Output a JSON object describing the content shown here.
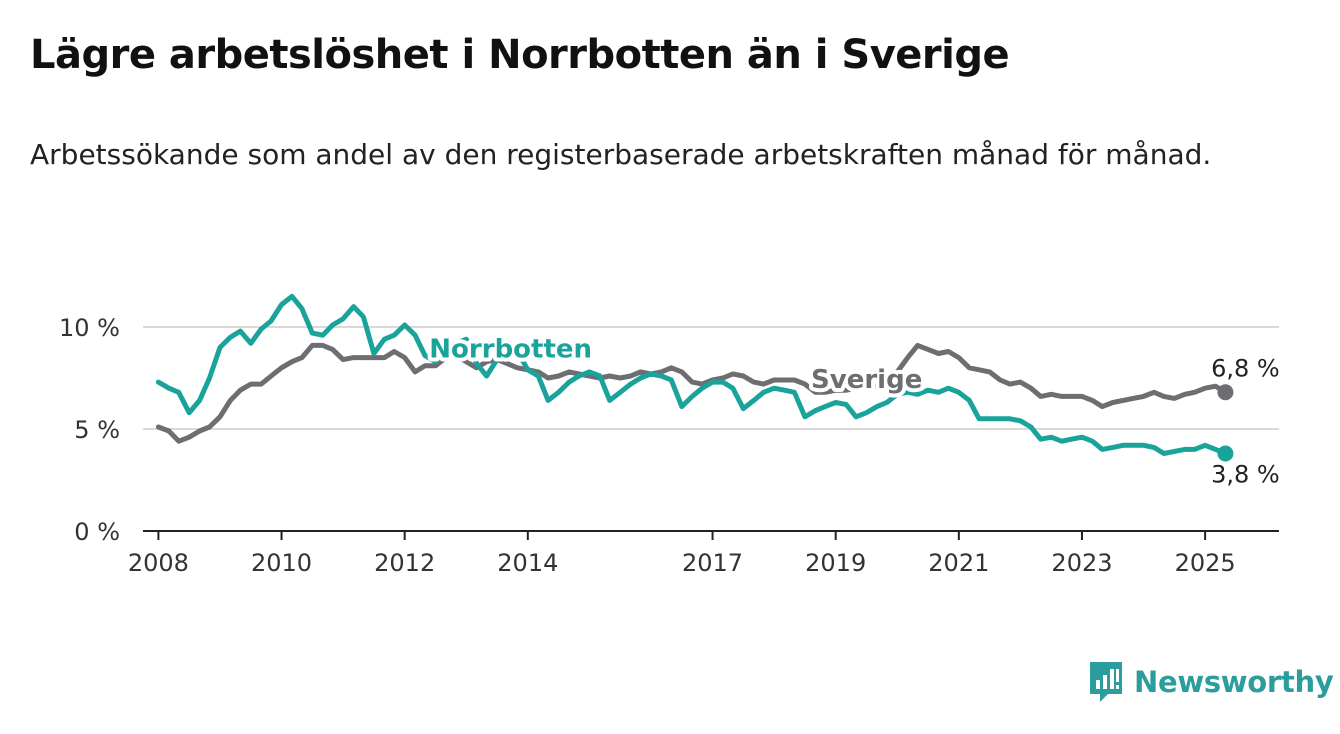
{
  "header": {
    "title": "Lägre arbetslöshet i Norrbotten än i Sverige",
    "subtitle": "Arbetssökande som andel av den registerbaserade arbetskraften månad för månad."
  },
  "brand": {
    "name": "Newsworthy",
    "icon": "newsworthy-logo-icon",
    "color": "#2a9d9c"
  },
  "chart_data": {
    "type": "line",
    "x_unit": "year",
    "xlim": [
      2007.75,
      2026.2
    ],
    "ylim": [
      0,
      10
    ],
    "grid": true,
    "x_ticks": [
      {
        "value": 2008,
        "label": "2008"
      },
      {
        "value": 2010,
        "label": "2010"
      },
      {
        "value": 2012,
        "label": "2012"
      },
      {
        "value": 2014,
        "label": "2014"
      },
      {
        "value": 2017,
        "label": "2017"
      },
      {
        "value": 2019,
        "label": "2019"
      },
      {
        "value": 2021,
        "label": "2021"
      },
      {
        "value": 2023,
        "label": "2023"
      },
      {
        "value": 2025,
        "label": "2025"
      }
    ],
    "y_ticks": [
      {
        "value": 0,
        "label": "0 %"
      },
      {
        "value": 5,
        "label": "5 %"
      },
      {
        "value": 10,
        "label": "10 %"
      }
    ],
    "series": [
      {
        "name": "Sverige",
        "color": "#6d6d72",
        "end_label": "6,8 %",
        "points": [
          [
            2008.0,
            5.1
          ],
          [
            2008.17,
            4.9
          ],
          [
            2008.33,
            4.4
          ],
          [
            2008.5,
            4.6
          ],
          [
            2008.67,
            4.9
          ],
          [
            2008.83,
            5.1
          ],
          [
            2009.0,
            5.6
          ],
          [
            2009.17,
            6.4
          ],
          [
            2009.33,
            6.9
          ],
          [
            2009.5,
            7.2
          ],
          [
            2009.67,
            7.2
          ],
          [
            2009.83,
            7.6
          ],
          [
            2010.0,
            8.0
          ],
          [
            2010.17,
            8.3
          ],
          [
            2010.33,
            8.5
          ],
          [
            2010.5,
            9.1
          ],
          [
            2010.67,
            9.1
          ],
          [
            2010.83,
            8.9
          ],
          [
            2011.0,
            8.4
          ],
          [
            2011.17,
            8.5
          ],
          [
            2011.33,
            8.5
          ],
          [
            2011.5,
            8.5
          ],
          [
            2011.67,
            8.5
          ],
          [
            2011.83,
            8.8
          ],
          [
            2012.0,
            8.5
          ],
          [
            2012.17,
            7.8
          ],
          [
            2012.33,
            8.1
          ],
          [
            2012.5,
            8.1
          ],
          [
            2012.67,
            8.5
          ],
          [
            2012.83,
            8.6
          ],
          [
            2013.0,
            8.3
          ],
          [
            2013.17,
            8.0
          ],
          [
            2013.33,
            8.3
          ],
          [
            2013.5,
            8.4
          ],
          [
            2013.67,
            8.2
          ],
          [
            2013.83,
            8.0
          ],
          [
            2014.0,
            7.9
          ],
          [
            2014.17,
            7.8
          ],
          [
            2014.33,
            7.5
          ],
          [
            2014.5,
            7.6
          ],
          [
            2014.67,
            7.8
          ],
          [
            2014.83,
            7.7
          ],
          [
            2015.0,
            7.6
          ],
          [
            2015.17,
            7.5
          ],
          [
            2015.33,
            7.6
          ],
          [
            2015.5,
            7.5
          ],
          [
            2015.67,
            7.6
          ],
          [
            2015.83,
            7.8
          ],
          [
            2016.0,
            7.7
          ],
          [
            2016.17,
            7.8
          ],
          [
            2016.33,
            8.0
          ],
          [
            2016.5,
            7.8
          ],
          [
            2016.67,
            7.3
          ],
          [
            2016.83,
            7.2
          ],
          [
            2017.0,
            7.4
          ],
          [
            2017.17,
            7.5
          ],
          [
            2017.33,
            7.7
          ],
          [
            2017.5,
            7.6
          ],
          [
            2017.67,
            7.3
          ],
          [
            2017.83,
            7.2
          ],
          [
            2018.0,
            7.4
          ],
          [
            2018.17,
            7.4
          ],
          [
            2018.33,
            7.4
          ],
          [
            2018.5,
            7.2
          ],
          [
            2018.67,
            6.8
          ],
          [
            2018.83,
            6.8
          ],
          [
            2019.0,
            6.9
          ],
          [
            2019.17,
            6.9
          ],
          [
            2019.33,
            7.0
          ],
          [
            2019.5,
            7.1
          ],
          [
            2019.67,
            7.1
          ],
          [
            2019.83,
            7.3
          ],
          [
            2020.0,
            7.8
          ],
          [
            2020.17,
            8.5
          ],
          [
            2020.33,
            9.1
          ],
          [
            2020.5,
            8.9
          ],
          [
            2020.67,
            8.7
          ],
          [
            2020.83,
            8.8
          ],
          [
            2021.0,
            8.5
          ],
          [
            2021.17,
            8.0
          ],
          [
            2021.33,
            7.9
          ],
          [
            2021.5,
            7.8
          ],
          [
            2021.67,
            7.4
          ],
          [
            2021.83,
            7.2
          ],
          [
            2022.0,
            7.3
          ],
          [
            2022.17,
            7.0
          ],
          [
            2022.33,
            6.6
          ],
          [
            2022.5,
            6.7
          ],
          [
            2022.67,
            6.6
          ],
          [
            2022.83,
            6.6
          ],
          [
            2023.0,
            6.6
          ],
          [
            2023.17,
            6.4
          ],
          [
            2023.33,
            6.1
          ],
          [
            2023.5,
            6.3
          ],
          [
            2023.67,
            6.4
          ],
          [
            2023.83,
            6.5
          ],
          [
            2024.0,
            6.6
          ],
          [
            2024.17,
            6.8
          ],
          [
            2024.33,
            6.6
          ],
          [
            2024.5,
            6.5
          ],
          [
            2024.67,
            6.7
          ],
          [
            2024.83,
            6.8
          ],
          [
            2025.0,
            7.0
          ],
          [
            2025.17,
            7.1
          ],
          [
            2025.33,
            6.8
          ]
        ]
      },
      {
        "name": "Norrbotten",
        "color": "#1aa39a",
        "end_label": "3,8 %",
        "points": [
          [
            2008.0,
            7.3
          ],
          [
            2008.17,
            7.0
          ],
          [
            2008.33,
            6.8
          ],
          [
            2008.5,
            5.8
          ],
          [
            2008.67,
            6.4
          ],
          [
            2008.83,
            7.5
          ],
          [
            2009.0,
            9.0
          ],
          [
            2009.17,
            9.5
          ],
          [
            2009.33,
            9.8
          ],
          [
            2009.5,
            9.2
          ],
          [
            2009.67,
            9.9
          ],
          [
            2009.83,
            10.3
          ],
          [
            2010.0,
            11.1
          ],
          [
            2010.17,
            11.5
          ],
          [
            2010.33,
            10.9
          ],
          [
            2010.5,
            9.7
          ],
          [
            2010.67,
            9.6
          ],
          [
            2010.83,
            10.1
          ],
          [
            2011.0,
            10.4
          ],
          [
            2011.17,
            11.0
          ],
          [
            2011.33,
            10.5
          ],
          [
            2011.5,
            8.7
          ],
          [
            2011.67,
            9.4
          ],
          [
            2011.83,
            9.6
          ],
          [
            2012.0,
            10.1
          ],
          [
            2012.17,
            9.6
          ],
          [
            2012.33,
            8.6
          ],
          [
            2012.5,
            8.3
          ],
          [
            2012.67,
            8.8
          ],
          [
            2012.83,
            9.2
          ],
          [
            2013.0,
            9.4
          ],
          [
            2013.17,
            8.2
          ],
          [
            2013.33,
            7.6
          ],
          [
            2013.5,
            8.4
          ],
          [
            2013.67,
            8.6
          ],
          [
            2013.83,
            8.8
          ],
          [
            2014.0,
            7.9
          ],
          [
            2014.17,
            7.6
          ],
          [
            2014.33,
            6.4
          ],
          [
            2014.5,
            6.8
          ],
          [
            2014.67,
            7.3
          ],
          [
            2014.83,
            7.6
          ],
          [
            2015.0,
            7.8
          ],
          [
            2015.17,
            7.6
          ],
          [
            2015.33,
            6.4
          ],
          [
            2015.5,
            6.8
          ],
          [
            2015.67,
            7.2
          ],
          [
            2015.83,
            7.5
          ],
          [
            2016.0,
            7.7
          ],
          [
            2016.17,
            7.6
          ],
          [
            2016.33,
            7.4
          ],
          [
            2016.5,
            6.1
          ],
          [
            2016.67,
            6.6
          ],
          [
            2016.83,
            7.0
          ],
          [
            2017.0,
            7.3
          ],
          [
            2017.17,
            7.3
          ],
          [
            2017.33,
            7.0
          ],
          [
            2017.5,
            6.0
          ],
          [
            2017.67,
            6.4
          ],
          [
            2017.83,
            6.8
          ],
          [
            2018.0,
            7.0
          ],
          [
            2018.17,
            6.9
          ],
          [
            2018.33,
            6.8
          ],
          [
            2018.5,
            5.6
          ],
          [
            2018.67,
            5.9
          ],
          [
            2018.83,
            6.1
          ],
          [
            2019.0,
            6.3
          ],
          [
            2019.17,
            6.2
          ],
          [
            2019.33,
            5.6
          ],
          [
            2019.5,
            5.8
          ],
          [
            2019.67,
            6.1
          ],
          [
            2019.83,
            6.3
          ],
          [
            2020.0,
            6.7
          ],
          [
            2020.17,
            6.8
          ],
          [
            2020.33,
            6.7
          ],
          [
            2020.5,
            6.9
          ],
          [
            2020.67,
            6.8
          ],
          [
            2020.83,
            7.0
          ],
          [
            2021.0,
            6.8
          ],
          [
            2021.17,
            6.4
          ],
          [
            2021.33,
            5.5
          ],
          [
            2021.5,
            5.5
          ],
          [
            2021.67,
            5.5
          ],
          [
            2021.83,
            5.5
          ],
          [
            2022.0,
            5.4
          ],
          [
            2022.17,
            5.1
          ],
          [
            2022.33,
            4.5
          ],
          [
            2022.5,
            4.6
          ],
          [
            2022.67,
            4.4
          ],
          [
            2022.83,
            4.5
          ],
          [
            2023.0,
            4.6
          ],
          [
            2023.17,
            4.4
          ],
          [
            2023.33,
            4.0
          ],
          [
            2023.5,
            4.1
          ],
          [
            2023.67,
            4.2
          ],
          [
            2023.83,
            4.2
          ],
          [
            2024.0,
            4.2
          ],
          [
            2024.17,
            4.1
          ],
          [
            2024.33,
            3.8
          ],
          [
            2024.5,
            3.9
          ],
          [
            2024.67,
            4.0
          ],
          [
            2024.83,
            4.0
          ],
          [
            2025.0,
            4.2
          ],
          [
            2025.17,
            4.0
          ],
          [
            2025.33,
            3.8
          ]
        ]
      }
    ],
    "series_labels": [
      {
        "series": "Norrbotten",
        "text": "Norrbotten",
        "at": [
          2012.4,
          8.5
        ]
      },
      {
        "series": "Sverige",
        "text": "Sverige",
        "at": [
          2018.6,
          7.0
        ]
      }
    ],
    "grid_color": "#d9d9d9",
    "axis_color": "#222222"
  }
}
